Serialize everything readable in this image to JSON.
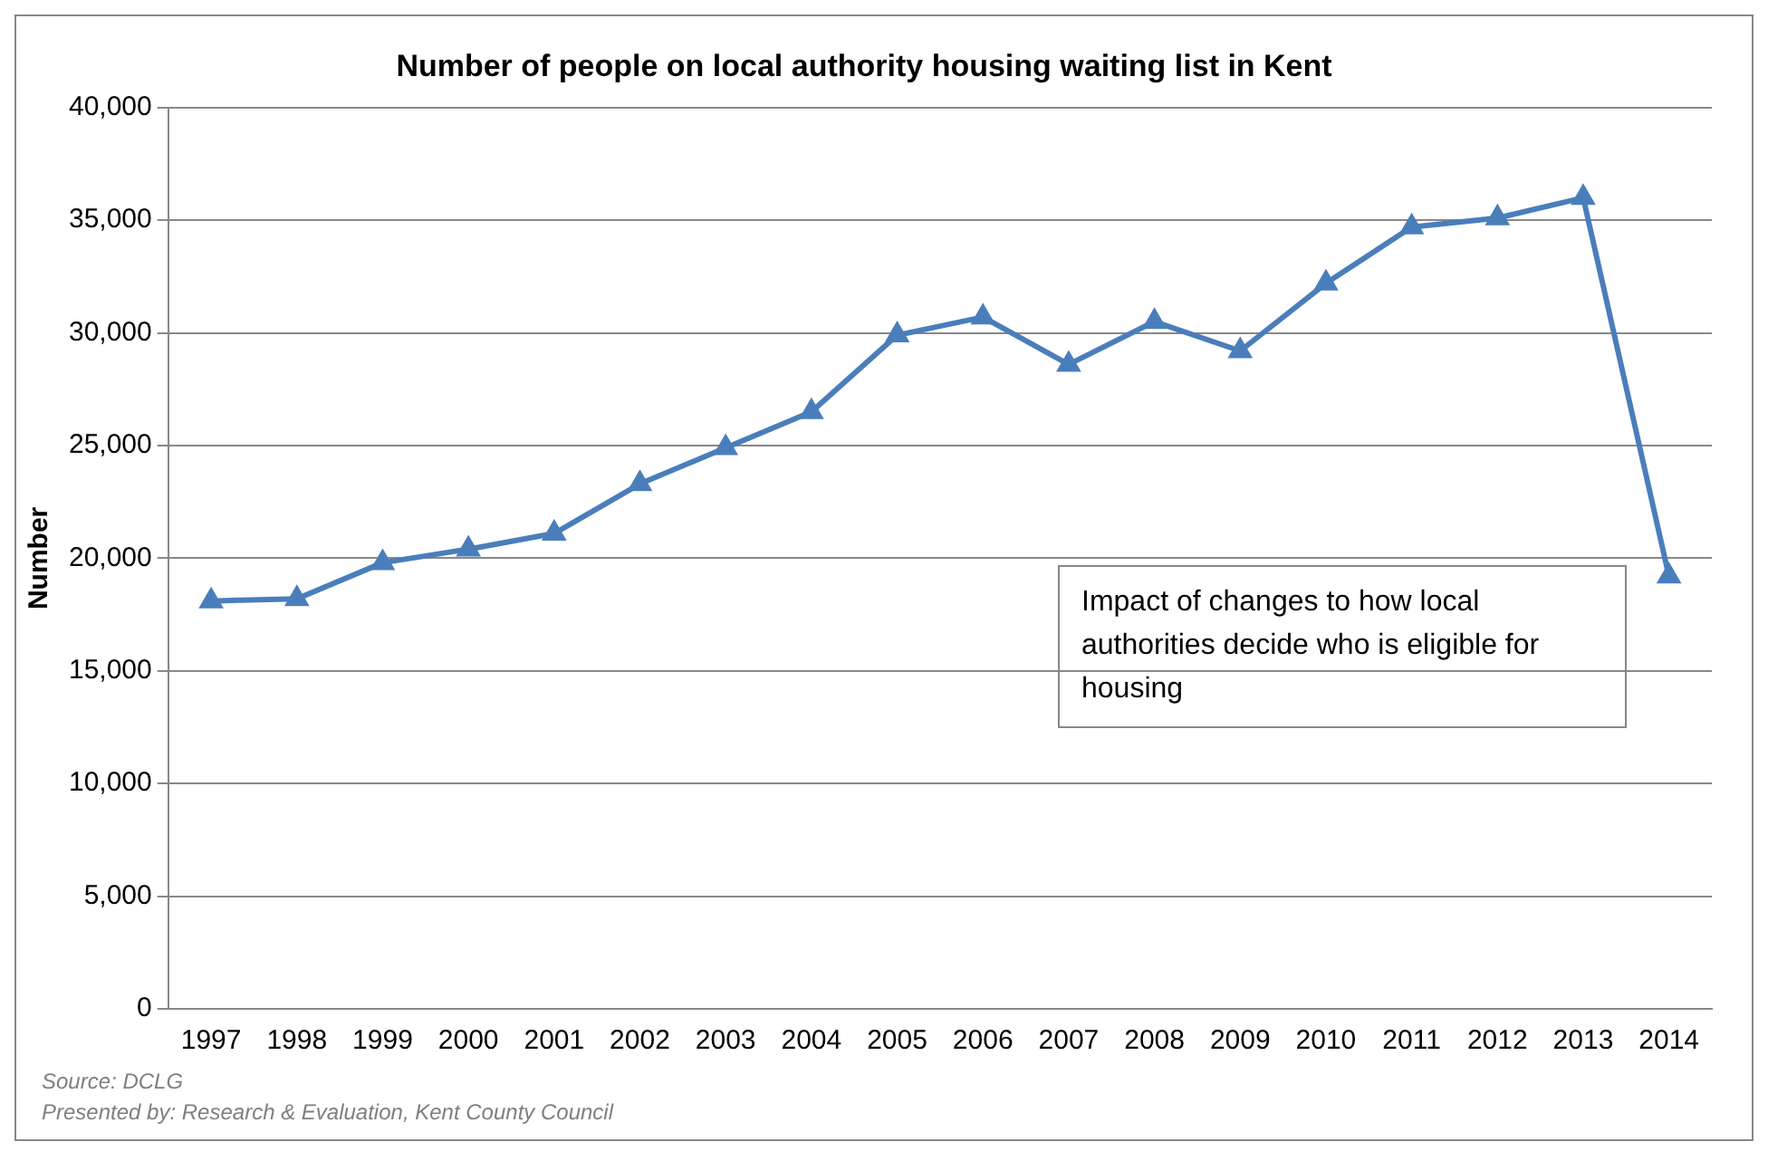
{
  "chart_data": {
    "type": "line",
    "title": "Number of people on local authority housing waiting list in Kent",
    "ylabel": "Number",
    "categories": [
      "1997",
      "1998",
      "1999",
      "2000",
      "2001",
      "2002",
      "2003",
      "2004",
      "2005",
      "2006",
      "2007",
      "2008",
      "2009",
      "2010",
      "2011",
      "2012",
      "2013",
      "2014"
    ],
    "series": [
      {
        "color": "#4a7ebb",
        "values": [
          18100,
          18200,
          19800,
          20400,
          21100,
          23300,
          24900,
          26500,
          29900,
          30700,
          28600,
          30500,
          29200,
          32200,
          34700,
          35100,
          36000,
          19200
        ]
      }
    ],
    "ylim": [
      0,
      40000
    ],
    "yticks": [
      {
        "value": 0,
        "label": "0"
      },
      {
        "value": 5000,
        "label": "5,000"
      },
      {
        "value": 10000,
        "label": "10,000"
      },
      {
        "value": 15000,
        "label": "15,000"
      },
      {
        "value": 20000,
        "label": "20,000"
      },
      {
        "value": 25000,
        "label": "25,000"
      },
      {
        "value": 30000,
        "label": "30,000"
      },
      {
        "value": 35000,
        "label": "35,000"
      },
      {
        "value": 40000,
        "label": "40,000"
      }
    ],
    "grid": "y",
    "legend": false,
    "marker": "triangle",
    "line_style": "solid",
    "annotations": [
      "Impact of changes to how local authorities decide who is eligible for housing",
      "Source: DCLG",
      "Presented by: Research & Evaluation, Kent County Council"
    ]
  }
}
